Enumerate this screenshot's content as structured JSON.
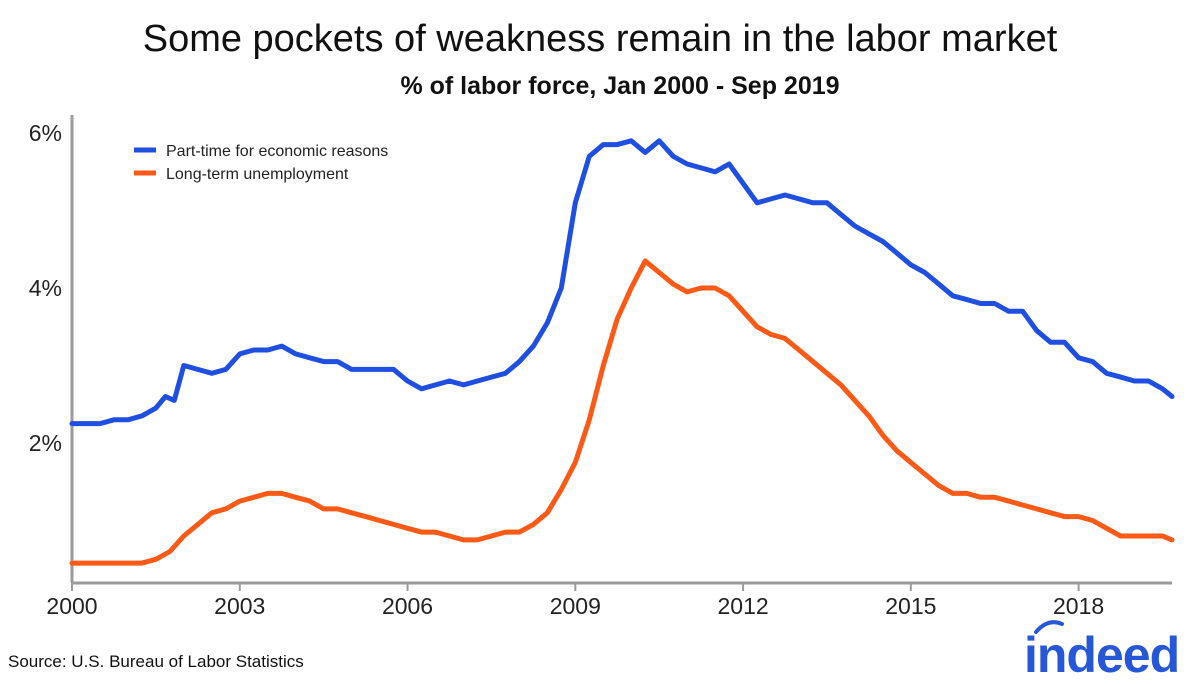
{
  "colors": {
    "part_time": "#1f4fe0",
    "long_term": "#fa5a16",
    "logo": "#2557d6"
  },
  "source": "Source: U.S. Bureau of Labor Statistics",
  "logo": {
    "text": "indeed"
  },
  "chart_data": {
    "type": "line",
    "title": "Some pockets of weakness remain in the labor market",
    "subtitle": "% of labor force, Jan 2000 - Sep 2019",
    "xlabel": "",
    "ylabel": "",
    "xlim": [
      2000.0,
      2019.67
    ],
    "ylim": [
      0.0,
      6.0
    ],
    "yticks": [
      2,
      4,
      6
    ],
    "ytick_labels": [
      "2%",
      "4%",
      "6%"
    ],
    "xticks": [
      2000,
      2003,
      2006,
      2009,
      2012,
      2015,
      2018
    ],
    "xtick_labels": [
      "2000",
      "2003",
      "2006",
      "2009",
      "2012",
      "2015",
      "2018"
    ],
    "grid": false,
    "legend_position": "top-left",
    "series": [
      {
        "name": "Part-time for economic reasons",
        "color": "#1f4fe0",
        "x": [
          2000.0,
          2000.25,
          2000.5,
          2000.75,
          2001.0,
          2001.25,
          2001.5,
          2001.67,
          2001.83,
          2002.0,
          2002.25,
          2002.5,
          2002.75,
          2003.0,
          2003.25,
          2003.5,
          2003.75,
          2004.0,
          2004.25,
          2004.5,
          2004.75,
          2005.0,
          2005.25,
          2005.5,
          2005.75,
          2006.0,
          2006.25,
          2006.5,
          2006.75,
          2007.0,
          2007.25,
          2007.5,
          2007.75,
          2008.0,
          2008.25,
          2008.5,
          2008.75,
          2009.0,
          2009.25,
          2009.5,
          2009.75,
          2010.0,
          2010.25,
          2010.5,
          2010.75,
          2011.0,
          2011.25,
          2011.5,
          2011.75,
          2012.0,
          2012.25,
          2012.5,
          2012.75,
          2013.0,
          2013.25,
          2013.5,
          2013.75,
          2014.0,
          2014.25,
          2014.5,
          2014.75,
          2015.0,
          2015.25,
          2015.5,
          2015.75,
          2016.0,
          2016.25,
          2016.5,
          2016.75,
          2017.0,
          2017.25,
          2017.5,
          2017.75,
          2018.0,
          2018.25,
          2018.5,
          2018.75,
          2019.0,
          2019.25,
          2019.5,
          2019.67
        ],
        "values": [
          2.25,
          2.25,
          2.25,
          2.3,
          2.3,
          2.35,
          2.45,
          2.6,
          2.55,
          3.0,
          2.95,
          2.9,
          2.95,
          3.15,
          3.2,
          3.2,
          3.25,
          3.15,
          3.1,
          3.05,
          3.05,
          2.95,
          2.95,
          2.95,
          2.95,
          2.8,
          2.7,
          2.75,
          2.8,
          2.75,
          2.8,
          2.85,
          2.9,
          3.05,
          3.25,
          3.55,
          4.0,
          5.1,
          5.7,
          5.85,
          5.85,
          5.9,
          5.75,
          5.9,
          5.7,
          5.6,
          5.55,
          5.5,
          5.6,
          5.35,
          5.1,
          5.15,
          5.2,
          5.15,
          5.1,
          5.1,
          4.95,
          4.8,
          4.7,
          4.6,
          4.45,
          4.3,
          4.2,
          4.05,
          3.9,
          3.85,
          3.8,
          3.8,
          3.7,
          3.7,
          3.45,
          3.3,
          3.3,
          3.1,
          3.05,
          2.9,
          2.85,
          2.8,
          2.8,
          2.7,
          2.6
        ]
      },
      {
        "name": "Long-term unemployment",
        "color": "#fa5a16",
        "x": [
          2000.0,
          2000.25,
          2000.5,
          2000.75,
          2001.0,
          2001.25,
          2001.5,
          2001.75,
          2002.0,
          2002.25,
          2002.5,
          2002.75,
          2003.0,
          2003.25,
          2003.5,
          2003.75,
          2004.0,
          2004.25,
          2004.5,
          2004.75,
          2005.0,
          2005.25,
          2005.5,
          2005.75,
          2006.0,
          2006.25,
          2006.5,
          2006.75,
          2007.0,
          2007.25,
          2007.5,
          2007.75,
          2008.0,
          2008.25,
          2008.5,
          2008.75,
          2009.0,
          2009.25,
          2009.5,
          2009.75,
          2010.0,
          2010.25,
          2010.5,
          2010.75,
          2011.0,
          2011.25,
          2011.5,
          2011.75,
          2012.0,
          2012.25,
          2012.5,
          2012.75,
          2013.0,
          2013.25,
          2013.5,
          2013.75,
          2014.0,
          2014.25,
          2014.5,
          2014.75,
          2015.0,
          2015.25,
          2015.5,
          2015.75,
          2016.0,
          2016.25,
          2016.5,
          2016.75,
          2017.0,
          2017.25,
          2017.5,
          2017.75,
          2018.0,
          2018.25,
          2018.5,
          2018.75,
          2019.0,
          2019.25,
          2019.5,
          2019.67
        ],
        "values": [
          0.45,
          0.45,
          0.45,
          0.45,
          0.45,
          0.45,
          0.5,
          0.6,
          0.8,
          0.95,
          1.1,
          1.15,
          1.25,
          1.3,
          1.35,
          1.35,
          1.3,
          1.25,
          1.15,
          1.15,
          1.1,
          1.05,
          1.0,
          0.95,
          0.9,
          0.85,
          0.85,
          0.8,
          0.75,
          0.75,
          0.8,
          0.85,
          0.85,
          0.95,
          1.1,
          1.4,
          1.75,
          2.3,
          3.0,
          3.6,
          4.0,
          4.35,
          4.2,
          4.05,
          3.95,
          4.0,
          4.0,
          3.9,
          3.7,
          3.5,
          3.4,
          3.35,
          3.2,
          3.05,
          2.9,
          2.75,
          2.55,
          2.35,
          2.1,
          1.9,
          1.75,
          1.6,
          1.45,
          1.35,
          1.35,
          1.3,
          1.3,
          1.25,
          1.2,
          1.15,
          1.1,
          1.05,
          1.05,
          1.0,
          0.9,
          0.8,
          0.8,
          0.8,
          0.8,
          0.75
        ]
      }
    ]
  }
}
